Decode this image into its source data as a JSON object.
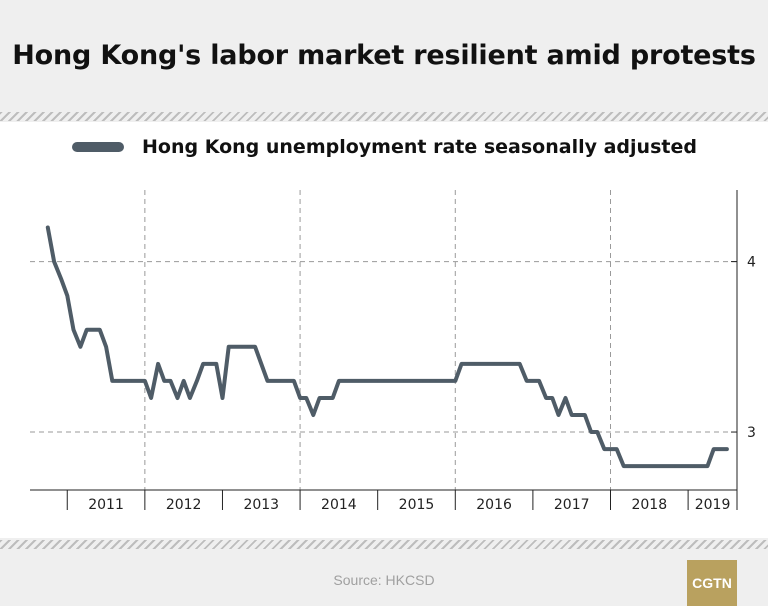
{
  "header": {
    "title": "Hong Kong's labor market resilient amid protests"
  },
  "footer": {
    "source": "Source: HKCSD",
    "logo_text": "CGTN"
  },
  "colors": {
    "line": "#4f5c67",
    "grid": "#9a9a9a",
    "axis": "#222222",
    "logo": "#b9a15f"
  },
  "chart_data": {
    "type": "line",
    "title": "Hong Kong's labor market resilient amid protests",
    "xlabel": "",
    "ylabel": "",
    "legend_position": "top-left",
    "grid": true,
    "ylim": [
      2.66,
      4.42
    ],
    "xlim": [
      2010.52,
      2019.63
    ],
    "x_tick_labels": [
      "2011",
      "2012",
      "2013",
      "2014",
      "2015",
      "2016",
      "2017",
      "2018",
      "2019"
    ],
    "y_ticks": [
      3,
      4
    ],
    "y_tick_labels": [
      "3",
      "4"
    ],
    "series": [
      {
        "name": "Hong Kong unemployment rate seasonally adjusted",
        "x": [
          2010.75,
          2010.83,
          2010.92,
          2011.0,
          2011.08,
          2011.17,
          2011.25,
          2011.33,
          2011.42,
          2011.5,
          2011.58,
          2011.67,
          2011.75,
          2011.83,
          2011.92,
          2012.0,
          2012.08,
          2012.17,
          2012.25,
          2012.33,
          2012.42,
          2012.5,
          2012.58,
          2012.67,
          2012.75,
          2012.83,
          2012.92,
          2013.0,
          2013.08,
          2013.17,
          2013.25,
          2013.33,
          2013.42,
          2013.5,
          2013.58,
          2013.67,
          2013.75,
          2013.83,
          2013.92,
          2014.0,
          2014.08,
          2014.17,
          2014.25,
          2014.33,
          2014.42,
          2014.5,
          2014.58,
          2014.67,
          2014.75,
          2014.83,
          2014.92,
          2015.0,
          2015.08,
          2015.17,
          2015.25,
          2015.33,
          2015.42,
          2015.5,
          2015.58,
          2015.67,
          2015.75,
          2015.83,
          2015.92,
          2016.0,
          2016.08,
          2016.17,
          2016.25,
          2016.33,
          2016.42,
          2016.5,
          2016.58,
          2016.67,
          2016.75,
          2016.83,
          2016.92,
          2017.0,
          2017.08,
          2017.17,
          2017.25,
          2017.33,
          2017.42,
          2017.5,
          2017.58,
          2017.67,
          2017.75,
          2017.83,
          2017.92,
          2018.0,
          2018.08,
          2018.17,
          2018.25,
          2018.33,
          2018.42,
          2018.5,
          2018.58,
          2018.67,
          2018.75,
          2018.83,
          2018.92,
          2019.0,
          2019.08,
          2019.17,
          2019.25,
          2019.33,
          2019.42,
          2019.5
        ],
        "y": [
          4.2,
          4.0,
          3.9,
          3.8,
          3.6,
          3.5,
          3.6,
          3.6,
          3.6,
          3.5,
          3.3,
          3.3,
          3.3,
          3.3,
          3.3,
          3.3,
          3.2,
          3.4,
          3.3,
          3.3,
          3.2,
          3.3,
          3.2,
          3.3,
          3.4,
          3.4,
          3.4,
          3.2,
          3.5,
          3.5,
          3.5,
          3.5,
          3.5,
          3.4,
          3.3,
          3.3,
          3.3,
          3.3,
          3.3,
          3.2,
          3.2,
          3.1,
          3.2,
          3.2,
          3.2,
          3.3,
          3.3,
          3.3,
          3.3,
          3.3,
          3.3,
          3.3,
          3.3,
          3.3,
          3.3,
          3.3,
          3.3,
          3.3,
          3.3,
          3.3,
          3.3,
          3.3,
          3.3,
          3.3,
          3.4,
          3.4,
          3.4,
          3.4,
          3.4,
          3.4,
          3.4,
          3.4,
          3.4,
          3.4,
          3.3,
          3.3,
          3.3,
          3.2,
          3.2,
          3.1,
          3.2,
          3.1,
          3.1,
          3.1,
          3.0,
          3.0,
          2.9,
          2.9,
          2.9,
          2.8,
          2.8,
          2.8,
          2.8,
          2.8,
          2.8,
          2.8,
          2.8,
          2.8,
          2.8,
          2.8,
          2.8,
          2.8,
          2.8,
          2.9,
          2.9,
          2.9
        ]
      }
    ]
  }
}
